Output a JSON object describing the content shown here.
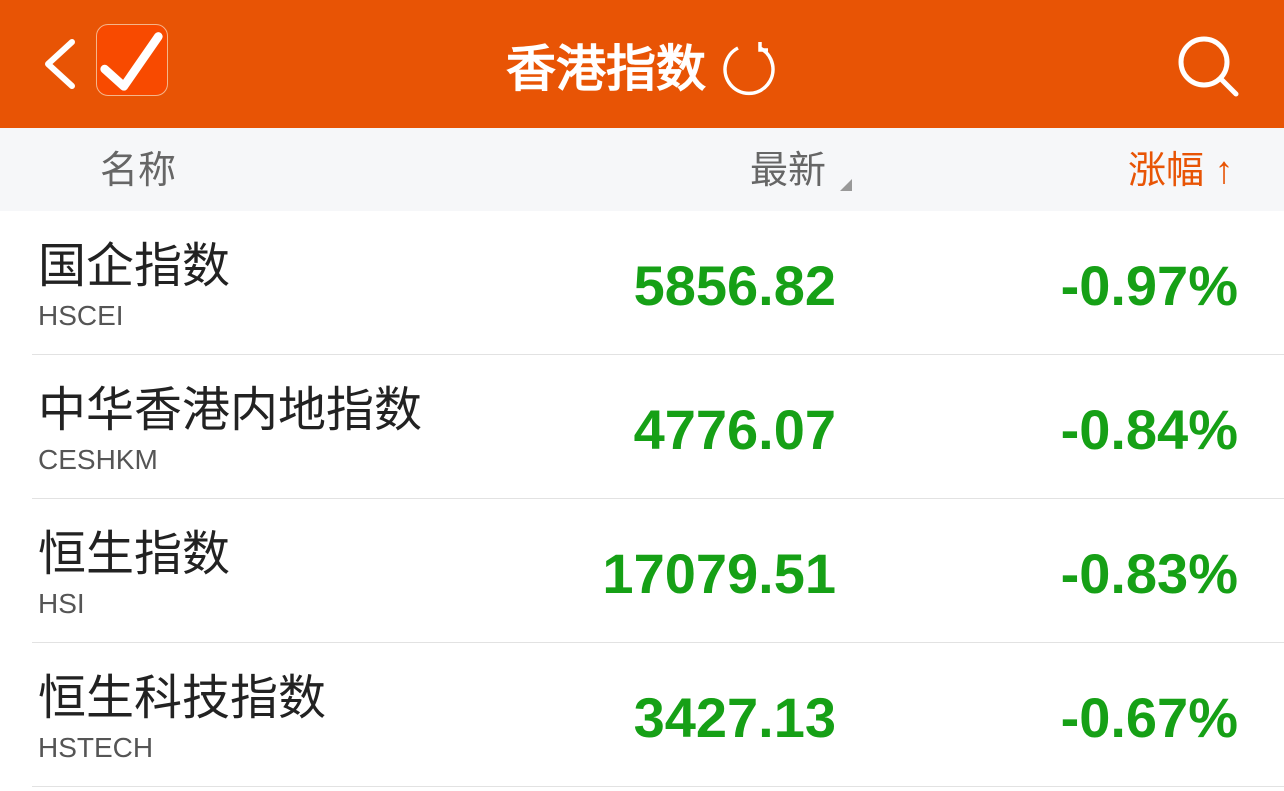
{
  "header": {
    "title": "香港指数",
    "icons": [
      "back-icon",
      "checkbox-checked-icon",
      "refresh-icon",
      "search-icon"
    ],
    "color": "#E85405"
  },
  "columns": {
    "name": "名称",
    "latest": "最新",
    "change": "涨幅",
    "change_arrow": "↑",
    "active_color": "#E85405"
  },
  "rows": [
    {
      "name": "国企指数",
      "code": "HSCEI",
      "price": "5856.82",
      "change": "-0.97%"
    },
    {
      "name": "中华香港内地指数",
      "code": "CESHKM",
      "price": "4776.07",
      "change": "-0.84%"
    },
    {
      "name": "恒生指数",
      "code": "HSI",
      "price": "17079.51",
      "change": "-0.83%"
    },
    {
      "name": "恒生科技指数",
      "code": "HSTECH",
      "price": "3427.13",
      "change": "-0.67%"
    }
  ],
  "down_color": "#16A016"
}
